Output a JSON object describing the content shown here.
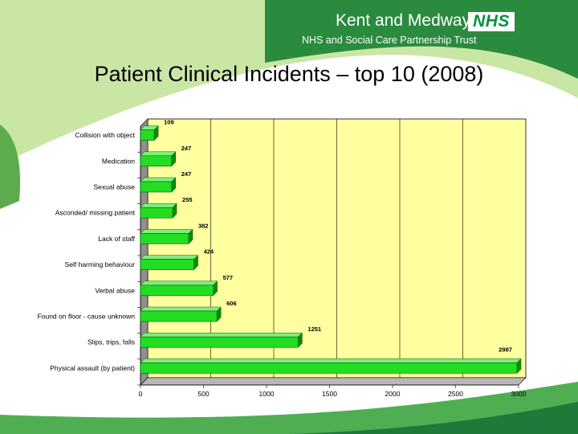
{
  "header": {
    "org_name": "Kent and Medway",
    "logo_text": "NHS",
    "org_subtitle": "NHS and Social Care Partnership Trust"
  },
  "slide": {
    "title": "Patient Clinical Incidents – top 10 (2008)"
  },
  "colors": {
    "brand_green": "#2a8a3e",
    "light_green": "#c9e6a5",
    "plot_background": "#ffffa0",
    "bar_fill": "#22dd22",
    "bar_dark": "#0f8a0f"
  },
  "chart_data": {
    "type": "bar",
    "orientation": "horizontal",
    "style": "3d",
    "title": "",
    "xlabel": "",
    "ylabel": "",
    "categories": [
      "Collision with object",
      "Medication",
      "Sexual abuse",
      "Asconded/ missing patient",
      "Lack of staff",
      "Self harming behaviour",
      "Verbal abuse",
      "Found on floor - cause unknown",
      "Slips, trips, falls",
      "Physical assault (by patient)"
    ],
    "values": [
      109,
      247,
      247,
      255,
      382,
      424,
      577,
      606,
      1251,
      2987
    ],
    "xlim": [
      0,
      3000
    ],
    "x_ticks": [
      "0",
      "500",
      "1000",
      "1500",
      "2000",
      "2500",
      "3000"
    ],
    "grid": "vertical",
    "legend": "none"
  }
}
